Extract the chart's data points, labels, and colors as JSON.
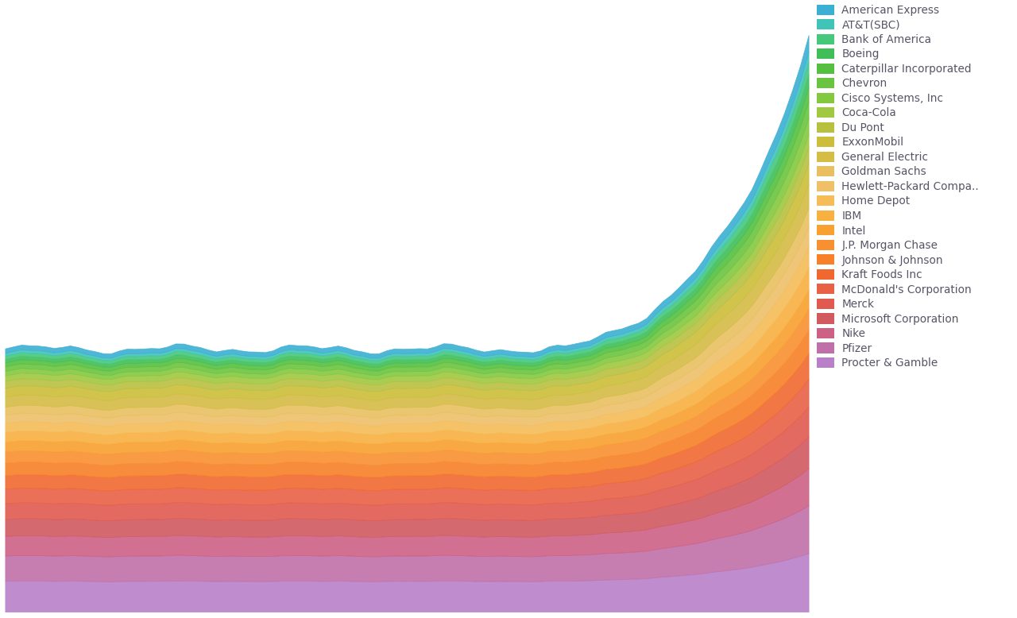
{
  "companies": [
    "American Express",
    "AT&T(SBC)",
    "Bank of America",
    "Boeing",
    "Caterpillar Incorporated",
    "Chevron",
    "Cisco Systems, Inc",
    "Coca-Cola",
    "Du Pont",
    "ExxonMobil",
    "General Electric",
    "Goldman Sachs",
    "Hewlett-Packard Compa..",
    "Home Depot",
    "IBM",
    "Intel",
    "J.P. Morgan Chase",
    "Johnson & Johnson",
    "Kraft Foods Inc",
    "McDonald's Corporation",
    "Merck",
    "Microsoft Corporation",
    "Nike",
    "Pfizer",
    "Procter & Gamble"
  ],
  "colors": [
    "#3BAFD4",
    "#40C4B8",
    "#45C87A",
    "#40BF58",
    "#55C040",
    "#6BC440",
    "#84C840",
    "#A0C840",
    "#B8C040",
    "#CCBE3A",
    "#D4BC45",
    "#E8C060",
    "#EEC068",
    "#F5BC58",
    "#F8B040",
    "#F8A030",
    "#F89030",
    "#F88028",
    "#F06830",
    "#E86045",
    "#E05A50",
    "#D05A60",
    "#CC6085",
    "#C070A8",
    "#B880C8"
  ],
  "n_points": 100,
  "background_color": "#ffffff",
  "grid_color": "#dde8f0",
  "legend_text_color": "#555566"
}
